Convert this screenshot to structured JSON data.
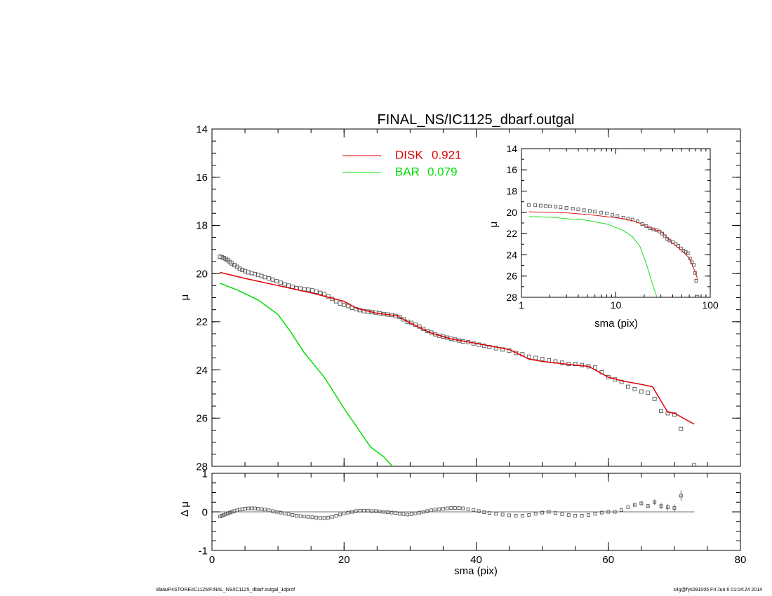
{
  "chart_data": [
    {
      "type": "scatter",
      "title": "FINAL_NS/IC1125_dbarf.outgal",
      "xlabel": "",
      "ylabel": "μ",
      "xlim": [
        0,
        80
      ],
      "ylim": [
        28,
        14
      ],
      "y_inverted": true,
      "x_ticks": [
        0,
        20,
        40,
        60,
        80
      ],
      "y_ticks": [
        14,
        16,
        18,
        20,
        22,
        24,
        26,
        28
      ],
      "legend_placement": "top-center",
      "colors": {
        "data": "#555555",
        "disk": "#dd0000",
        "bar": "#00dd00",
        "disk_label": "#dd0000",
        "bar_label": "#00dd00"
      },
      "legend": [
        {
          "name": "DISK",
          "value": "0.921",
          "color": "#dd0000"
        },
        {
          "name": "BAR",
          "value": "0.079",
          "color": "#00dd00"
        }
      ],
      "series": [
        {
          "name": "DISK",
          "kind": "line",
          "color": "#dd0000",
          "x": [
            1.2,
            5,
            10,
            15,
            20,
            22,
            25,
            28,
            30,
            33,
            36,
            40,
            45,
            48,
            50,
            55,
            57,
            60,
            62,
            65,
            66.7,
            68,
            69,
            70,
            73
          ],
          "y": [
            19.95,
            20.2,
            20.5,
            20.8,
            21.15,
            21.45,
            21.65,
            21.75,
            22.05,
            22.45,
            22.7,
            22.9,
            23.15,
            23.55,
            23.65,
            23.8,
            23.85,
            24.3,
            24.45,
            24.6,
            24.7,
            25.3,
            25.75,
            25.8,
            26.25
          ]
        },
        {
          "name": "BAR",
          "kind": "line",
          "color": "#00dd00",
          "x": [
            1.2,
            4,
            7,
            10,
            12,
            14,
            17,
            20,
            22,
            24,
            26,
            27.3
          ],
          "y": [
            20.4,
            20.7,
            21.1,
            21.7,
            22.45,
            23.3,
            24.3,
            25.6,
            26.4,
            27.2,
            27.6,
            28.0
          ]
        },
        {
          "name": "data",
          "kind": "markers",
          "color": "#555555",
          "x": [
            1.2,
            1.5,
            1.8,
            2.1,
            2.4,
            2.7,
            3.0,
            3.4,
            3.8,
            4.2,
            4.6,
            5.0,
            5.5,
            6.0,
            6.5,
            7.0,
            7.5,
            8.0,
            8.6,
            9.2,
            9.8,
            10.4,
            11.0,
            11.6,
            12.2,
            12.8,
            13.4,
            14.0,
            14.6,
            15.2,
            15.8,
            16.4,
            17.0,
            17.6,
            18.2,
            18.8,
            19.4,
            20.0,
            20.6,
            21.2,
            21.8,
            22.4,
            23.0,
            23.6,
            24.2,
            24.8,
            25.4,
            26.0,
            26.6,
            27.2,
            27.8,
            28.4,
            29.0,
            29.6,
            30.2,
            30.8,
            31.4,
            32.0,
            32.6,
            33.2,
            33.8,
            34.4,
            35.0,
            35.6,
            36.2,
            36.8,
            37.4,
            38.0,
            38.8,
            39.6,
            40.4,
            41.2,
            42.0,
            43.0,
            44.0,
            45.0,
            46.0,
            47.0,
            48.0,
            49.0,
            50.0,
            51.0,
            52.0,
            53.0,
            54.0,
            55.0,
            56.0,
            57.0,
            58.0,
            59.0,
            60.0,
            61.0,
            62.0,
            63.0,
            64.0,
            65.0,
            66.0,
            67.0,
            68.0,
            69.0,
            70.0,
            71.0,
            73.0
          ],
          "y": [
            19.3,
            19.32,
            19.36,
            19.4,
            19.45,
            19.52,
            19.58,
            19.65,
            19.72,
            19.8,
            19.85,
            19.9,
            19.95,
            19.98,
            20.02,
            20.05,
            20.1,
            20.15,
            20.2,
            20.25,
            20.32,
            20.38,
            20.45,
            20.5,
            20.55,
            20.6,
            20.62,
            20.65,
            20.67,
            20.7,
            20.75,
            20.8,
            20.85,
            20.95,
            21.05,
            21.15,
            21.25,
            21.3,
            21.35,
            21.42,
            21.48,
            21.52,
            21.56,
            21.58,
            21.6,
            21.62,
            21.65,
            21.68,
            21.7,
            21.72,
            21.76,
            21.8,
            21.9,
            22.0,
            22.05,
            22.12,
            22.2,
            22.3,
            22.38,
            22.45,
            22.52,
            22.58,
            22.62,
            22.66,
            22.7,
            22.74,
            22.78,
            22.82,
            22.85,
            22.9,
            22.95,
            23.0,
            23.05,
            23.1,
            23.15,
            23.2,
            23.3,
            23.35,
            23.45,
            23.5,
            23.55,
            23.6,
            23.65,
            23.7,
            23.75,
            23.75,
            23.8,
            23.85,
            23.9,
            24.1,
            24.3,
            24.4,
            24.5,
            24.7,
            24.8,
            24.9,
            24.95,
            25.2,
            25.7,
            25.8,
            25.85,
            26.45,
            27.95
          ]
        }
      ]
    },
    {
      "type": "scatter",
      "title": "",
      "xlabel": "sma (pix)",
      "ylabel": "Δ μ",
      "xlim": [
        0,
        80
      ],
      "ylim": [
        -1,
        1
      ],
      "x_ticks": [
        0,
        20,
        40,
        60,
        80
      ],
      "y_ticks": [
        1,
        0,
        -1
      ],
      "zero_line": true,
      "series": [
        {
          "name": "residual",
          "kind": "markers",
          "color": "#555555",
          "x": [
            1.2,
            1.5,
            1.8,
            2.1,
            2.4,
            2.7,
            3.0,
            3.4,
            3.8,
            4.2,
            4.6,
            5.0,
            5.5,
            6.0,
            6.5,
            7.0,
            7.5,
            8.0,
            8.6,
            9.2,
            9.8,
            10.4,
            11.0,
            11.6,
            12.2,
            12.8,
            13.4,
            14.0,
            14.6,
            15.2,
            15.8,
            16.4,
            17.0,
            17.6,
            18.2,
            18.8,
            19.4,
            20.0,
            20.6,
            21.2,
            21.8,
            22.4,
            23.0,
            23.6,
            24.2,
            24.8,
            25.4,
            26.0,
            26.6,
            27.2,
            27.8,
            28.4,
            29.0,
            29.6,
            30.2,
            30.8,
            31.4,
            32.0,
            32.6,
            33.2,
            33.8,
            34.4,
            35.0,
            35.6,
            36.2,
            36.8,
            37.4,
            38.0,
            38.8,
            39.6,
            40.4,
            41.2,
            42.0,
            43.0,
            44.0,
            45.0,
            46.0,
            47.0,
            48.0,
            49.0,
            50.0,
            51.0,
            52.0,
            53.0,
            54.0,
            55.0,
            56.0,
            57.0,
            58.0,
            59.0,
            60.0,
            61.0,
            62.0,
            63.0,
            64.0,
            65.0,
            66.0,
            67.0,
            68.0,
            69.0,
            70.0,
            71.0
          ],
          "y": [
            -0.12,
            -0.1,
            -0.08,
            -0.06,
            -0.04,
            -0.02,
            0.0,
            0.02,
            0.04,
            0.06,
            0.07,
            0.08,
            0.09,
            0.09,
            0.09,
            0.08,
            0.07,
            0.06,
            0.04,
            0.02,
            0.0,
            -0.02,
            -0.04,
            -0.06,
            -0.08,
            -0.1,
            -0.11,
            -0.12,
            -0.13,
            -0.14,
            -0.15,
            -0.16,
            -0.16,
            -0.15,
            -0.13,
            -0.1,
            -0.07,
            -0.04,
            -0.02,
            0.0,
            0.02,
            0.03,
            0.03,
            0.03,
            0.02,
            0.02,
            0.01,
            0.0,
            -0.01,
            -0.02,
            -0.03,
            -0.05,
            -0.06,
            -0.07,
            -0.06,
            -0.04,
            -0.02,
            0.0,
            0.02,
            0.04,
            0.06,
            0.07,
            0.08,
            0.09,
            0.1,
            0.1,
            0.1,
            0.09,
            0.07,
            0.05,
            0.02,
            -0.01,
            -0.03,
            -0.05,
            -0.07,
            -0.09,
            -0.1,
            -0.1,
            -0.08,
            -0.05,
            -0.02,
            0.0,
            -0.03,
            -0.06,
            -0.08,
            -0.1,
            -0.1,
            -0.08,
            -0.05,
            -0.02,
            0.0,
            0.0,
            0.05,
            0.12,
            0.18,
            0.22,
            0.15,
            0.25,
            0.15,
            0.12,
            0.1,
            0.42
          ],
          "yerr": [
            0,
            0,
            0,
            0,
            0,
            0,
            0,
            0,
            0,
            0,
            0,
            0,
            0,
            0,
            0,
            0,
            0,
            0,
            0,
            0,
            0,
            0,
            0,
            0,
            0,
            0,
            0,
            0,
            0,
            0,
            0,
            0,
            0,
            0,
            0,
            0,
            0,
            0,
            0,
            0,
            0,
            0,
            0,
            0,
            0,
            0,
            0,
            0,
            0,
            0,
            0,
            0,
            0,
            0,
            0,
            0,
            0,
            0,
            0,
            0,
            0,
            0,
            0,
            0,
            0,
            0,
            0,
            0,
            0,
            0,
            0,
            0,
            0,
            0,
            0,
            0,
            0,
            0,
            0,
            0,
            0,
            0,
            0,
            0,
            0,
            0,
            0,
            0,
            0,
            0,
            0,
            0,
            0,
            0,
            0.04,
            0.05,
            0.05,
            0.07,
            0.08,
            0.09,
            0.1,
            0.14
          ]
        }
      ]
    },
    {
      "type": "scatter",
      "title": "",
      "xlabel": "sma (pix)",
      "ylabel": "μ",
      "x_scale": "log",
      "xlim": [
        1,
        100
      ],
      "ylim": [
        28,
        14
      ],
      "y_inverted": true,
      "x_ticks": [
        1,
        10,
        100
      ],
      "y_ticks": [
        14,
        16,
        18,
        20,
        22,
        24,
        26,
        28
      ],
      "series": [
        {
          "name": "DISK",
          "kind": "line",
          "color": "#dd0000",
          "x": [
            1.2,
            2,
            3,
            5,
            8,
            12,
            16,
            20,
            25,
            30,
            40,
            50,
            60,
            70,
            73
          ],
          "y": [
            19.95,
            20.0,
            20.05,
            20.2,
            20.4,
            20.6,
            20.85,
            21.2,
            21.6,
            21.8,
            22.9,
            23.6,
            24.3,
            25.7,
            26.25
          ]
        },
        {
          "name": "BAR",
          "kind": "line",
          "color": "#00dd00",
          "x": [
            1.2,
            2,
            3,
            5,
            8,
            12,
            15,
            18,
            20,
            22,
            24,
            26,
            27.3
          ],
          "y": [
            20.4,
            20.45,
            20.6,
            20.75,
            21.1,
            21.7,
            22.3,
            23.2,
            24.3,
            25.4,
            26.5,
            27.5,
            28.0
          ]
        },
        {
          "name": "data",
          "kind": "markers",
          "color": "#555555",
          "x": [
            1.2,
            1.4,
            1.6,
            1.8,
            2.0,
            2.3,
            2.6,
            3.0,
            3.5,
            4.0,
            4.6,
            5.3,
            6.0,
            7.0,
            8.0,
            9.2,
            10.4,
            12.0,
            13.5,
            15.0,
            17.0,
            19.0,
            21.0,
            23.0,
            25.0,
            27.0,
            29.0,
            31.0,
            33.0,
            35.0,
            37.0,
            40.0,
            43.0,
            46.0,
            49.0,
            52.0,
            55.0,
            58.0,
            61.0,
            64.0,
            67.0,
            69.0,
            71.0,
            73.0
          ],
          "y": [
            19.3,
            19.33,
            19.36,
            19.4,
            19.43,
            19.47,
            19.52,
            19.58,
            19.65,
            19.72,
            19.8,
            19.87,
            19.93,
            20.02,
            20.1,
            20.22,
            20.35,
            20.5,
            20.6,
            20.68,
            20.85,
            21.1,
            21.3,
            21.5,
            21.6,
            21.68,
            21.8,
            22.0,
            22.25,
            22.5,
            22.65,
            22.8,
            22.98,
            23.15,
            23.4,
            23.6,
            23.72,
            23.85,
            24.35,
            24.7,
            24.95,
            25.7,
            26.45,
            27.95
          ]
        }
      ]
    }
  ],
  "footer": {
    "left": "/data/P4STORE/IC1125/FINAL_NS/IC1125_dbarf.outgal_1dprof",
    "right": "s4g@fys091005  Fri Jun  6 01:04:24 2014"
  }
}
